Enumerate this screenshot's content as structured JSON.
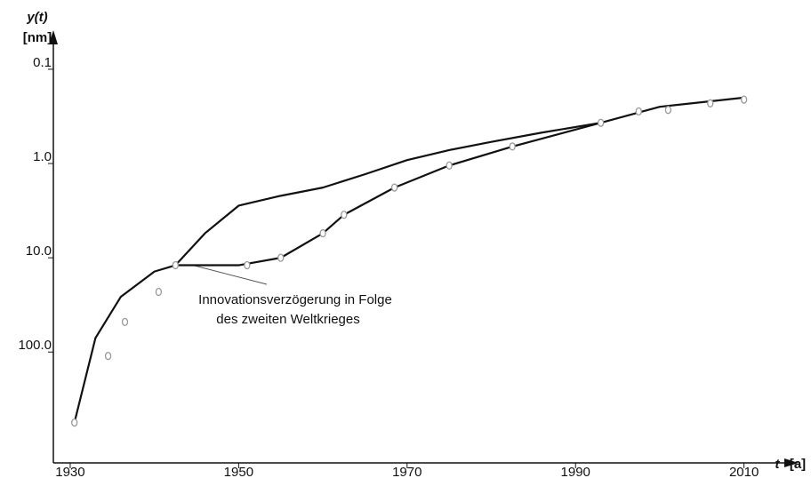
{
  "chart_data": {
    "type": "line",
    "y_label": "y(t)",
    "y_unit": "[nm]",
    "x_label": "t",
    "x_unit": "[a]",
    "annotation": [
      "Innovationsverzögerung in Folge",
      "des zweiten Weltkrieges"
    ],
    "log_y": true,
    "y_inverted": true,
    "xlim": [
      1928,
      2015
    ],
    "ylim": [
      0.05,
      1500
    ],
    "xticks": [
      1930,
      1950,
      1970,
      1990,
      2010
    ],
    "yticks": [
      0.1,
      {
        "value": 1,
        "label": "1.0"
      },
      {
        "value": 10,
        "label": "10.0"
      },
      {
        "value": 100,
        "label": "100.0"
      }
    ],
    "points": {
      "color": "#999999",
      "x": [
        1930.5,
        1934.5,
        1936.5,
        1940.5,
        1942.5,
        1951,
        1955,
        1960,
        1962.5,
        1968.5,
        1975,
        1982.5,
        1993,
        1997.5,
        2001,
        2006,
        2010
      ],
      "values": [
        560,
        110,
        48,
        23,
        12,
        12,
        10,
        5.5,
        3.5,
        1.8,
        1.05,
        0.66,
        0.37,
        0.28,
        0.27,
        0.23,
        0.21
      ]
    },
    "series": [
      {
        "color": "#111111",
        "x": [
          1930.5,
          1933,
          1936,
          1940,
          1942.5,
          1946,
          1950,
          1955,
          1960,
          1965,
          1970,
          1975,
          1980,
          1986,
          1993,
          2000,
          2010
        ],
        "values": [
          560,
          71,
          26,
          14,
          12,
          5.5,
          2.8,
          2.2,
          1.8,
          1.3,
          0.92,
          0.72,
          0.59,
          0.47,
          0.37,
          0.25,
          0.2
        ]
      },
      {
        "color": "#111111",
        "x": [
          1942.5,
          1950,
          1955,
          1960,
          1962.5,
          1968.5,
          1975,
          1982.5,
          1993
        ],
        "values": [
          12,
          12,
          10,
          5.5,
          3.5,
          1.8,
          1.05,
          0.66,
          0.37
        ]
      }
    ]
  }
}
